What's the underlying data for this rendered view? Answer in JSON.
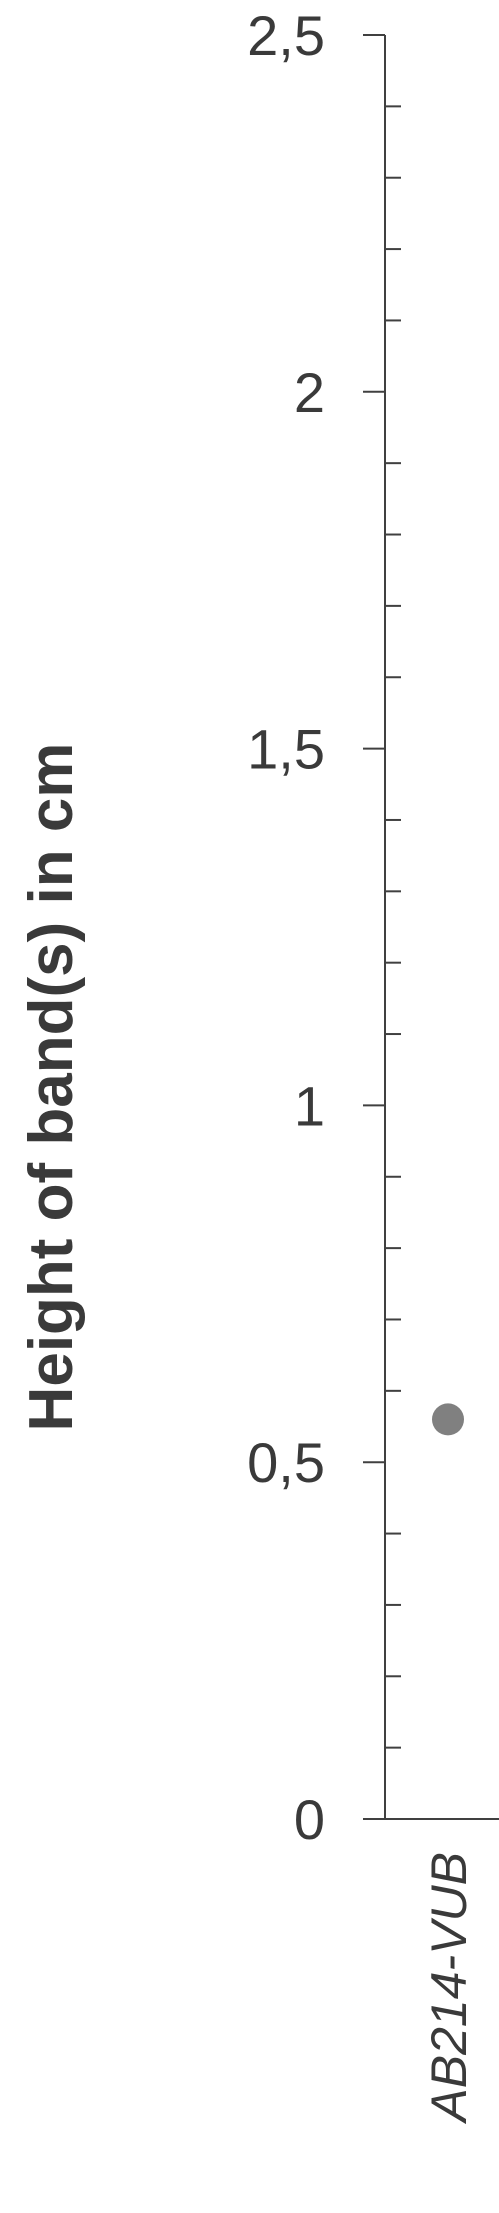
{
  "chart_data": {
    "type": "scatter",
    "ylabel": "Height of band(s) in cm",
    "ylim": [
      0,
      2.5
    ],
    "y_major_step": 0.5,
    "y_minor_step": 0.1,
    "y_tick_labels": [
      "0",
      "0,5",
      "1",
      "1,5",
      "2",
      "2,5"
    ],
    "categories": [
      "AB214-VUB"
    ],
    "series": [
      {
        "values": [
          0.56
        ],
        "color": "#808080"
      }
    ],
    "grid": false
  }
}
